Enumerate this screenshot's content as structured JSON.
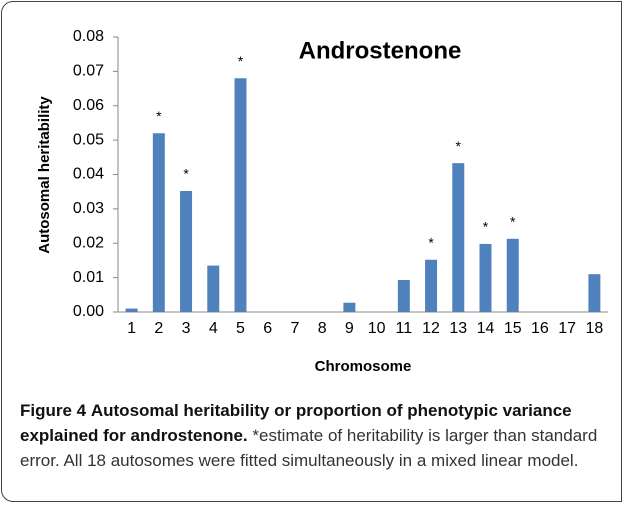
{
  "chart_data": {
    "type": "bar",
    "title": "Androstenone",
    "x_label": "Chromosome",
    "y_label": "Autosomal heritability",
    "categories": [
      "1",
      "2",
      "3",
      "4",
      "5",
      "6",
      "7",
      "8",
      "9",
      "10",
      "11",
      "12",
      "13",
      "14",
      "15",
      "16",
      "17",
      "18"
    ],
    "values": [
      0.001,
      0.052,
      0.0352,
      0.0135,
      0.068,
      0,
      0,
      0,
      0.0027,
      0,
      0.0093,
      0.0152,
      0.0433,
      0.0198,
      0.0213,
      0,
      0,
      0.011
    ],
    "color": "#4f81bd",
    "annotations": [
      {
        "category": "2",
        "text": "*"
      },
      {
        "category": "3",
        "text": "*"
      },
      {
        "category": "5",
        "text": "*"
      },
      {
        "category": "12",
        "text": "*"
      },
      {
        "category": "13",
        "text": "*"
      },
      {
        "category": "14",
        "text": "*"
      },
      {
        "category": "15",
        "text": "*"
      }
    ],
    "ylim": [
      0,
      0.08
    ],
    "yticks": [
      {
        "value": 0,
        "label": "0.00"
      },
      {
        "value": 0.01,
        "label": "0.01"
      },
      {
        "value": 0.02,
        "label": "0.02"
      },
      {
        "value": 0.03,
        "label": "0.03"
      },
      {
        "value": 0.04,
        "label": "0.04"
      },
      {
        "value": 0.05,
        "label": "0.05"
      },
      {
        "value": 0.06,
        "label": "0.06"
      },
      {
        "value": 0.07,
        "label": "0.07"
      },
      {
        "value": 0.08,
        "label": "0.08"
      }
    ],
    "grid": false
  },
  "caption": {
    "label": "Figure 4",
    "title": "Autosomal heritability or proportion of phenotypic variance explained for androstenone.",
    "text": "*estimate of heritability is larger than standard error. All 18 autosomes were fitted simultaneously in a mixed linear model."
  }
}
